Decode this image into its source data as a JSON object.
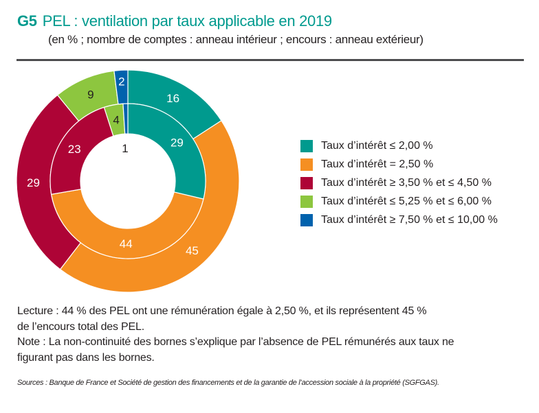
{
  "header": {
    "figure_number": "G5",
    "title": "PEL : ventilation par taux applicable en 2019",
    "subtitle": "(en % ; nombre de comptes : anneau intérieur ; encours : anneau extérieur)"
  },
  "chart_data": {
    "type": "pie",
    "subtype": "nested-donut",
    "title": "PEL : ventilation par taux applicable en 2019",
    "unit": "%",
    "categories": [
      "Taux d’intérêt ≤ 2,00 %",
      "Taux d’intérêt = 2,50 %",
      "Taux d’intérêt ≥ 3,50 % et ≤ 4,50 %",
      "Taux d’intérêt ≤ 5,25 % et ≤ 6,00 %",
      "Taux d’intérêt ≥ 7,50 % et ≤ 10,00 %"
    ],
    "colors": [
      "#009a8e",
      "#f58f22",
      "#ae0436",
      "#8dc63f",
      "#0062ad"
    ],
    "series": [
      {
        "name": "nombre de comptes (anneau intérieur)",
        "ring": "inner",
        "values": [
          29,
          44,
          23,
          4,
          1
        ],
        "label_colors": [
          "#ffffff",
          "#ffffff",
          "#ffffff",
          "#231f20",
          "#231f20"
        ]
      },
      {
        "name": "encours (anneau extérieur)",
        "ring": "outer",
        "values": [
          16,
          45,
          29,
          9,
          2
        ],
        "label_colors": [
          "#ffffff",
          "#ffffff",
          "#ffffff",
          "#231f20",
          "#ffffff"
        ]
      }
    ],
    "start": "top",
    "direction": "clockwise",
    "legend_position": "right"
  },
  "legend": {
    "items": [
      {
        "label": "Taux d’intérêt ≤ 2,00 %",
        "color": "#009a8e"
      },
      {
        "label": "Taux d’intérêt = 2,50 %",
        "color": "#f58f22"
      },
      {
        "label": "Taux d’intérêt ≥ 3,50 % et ≤ 4,50 %",
        "color": "#ae0436"
      },
      {
        "label": "Taux d’intérêt ≤ 5,25 % et ≤ 6,00 %",
        "color": "#8dc63f"
      },
      {
        "label": "Taux d’intérêt ≥ 7,50 % et ≤ 10,00 %",
        "color": "#0062ad"
      }
    ]
  },
  "notes": {
    "lecture_1": "Lecture : 44 % des PEL ont une rémunération égale à 2,50 %, et ils représentent 45 %",
    "lecture_2": "de l’encours total des PEL.",
    "note_1": "Note : La non-continuité des bornes s’explique par l’absence de PEL rémunérés aux taux ne",
    "note_2": "figurant pas dans les bornes.",
    "sources": "Sources : Banque de France et Société de gestion des financements et de la garantie de l’accession sociale à la propriété (SGFGAS)."
  }
}
